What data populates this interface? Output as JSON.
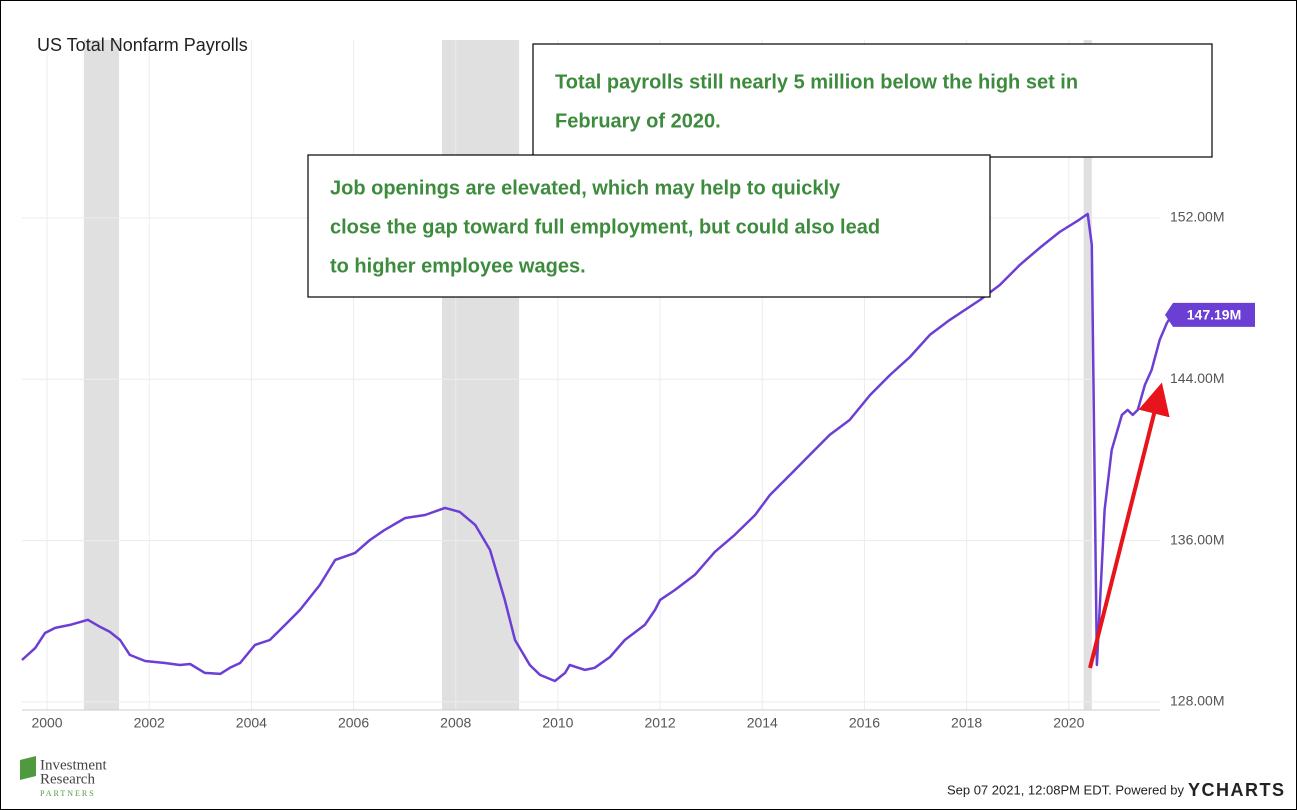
{
  "chart_data": {
    "type": "line",
    "title": "US Total Nonfarm Payrolls",
    "annotations": [
      "Total payrolls still nearly 5 million below the high set in",
      "February of 2020.",
      "Job openings are elevated, which may help to quickly",
      "close the gap toward full employment, but could also lead",
      "to higher employee wages."
    ],
    "footer": "Sep 07 2021, 12:08PM EDT. Powered by",
    "brand": "YCHARTS",
    "logo": [
      "Investment",
      "Research",
      "PARTNERS"
    ],
    "x": [
      1999.51,
      1999.77,
      1999.96,
      2000.16,
      2000.45,
      2000.8,
      2001.04,
      2001.23,
      2001.43,
      2001.62,
      2001.92,
      2002.31,
      2002.6,
      2002.8,
      2003.09,
      2003.39,
      2003.58,
      2003.78,
      2004.07,
      2004.36,
      2004.66,
      2004.95,
      2005.34,
      2005.64,
      2006.03,
      2006.32,
      2006.61,
      2007.01,
      2007.4,
      2007.79,
      2008.08,
      2008.38,
      2008.67,
      2008.96,
      2009.16,
      2009.45,
      2009.65,
      2009.94,
      2010.14,
      2010.23,
      2010.53,
      2010.72,
      2011.02,
      2011.31,
      2011.7,
      2011.9,
      2012.0,
      2012.29,
      2012.68,
      2013.07,
      2013.46,
      2013.86,
      2014.15,
      2014.54,
      2014.93,
      2015.32,
      2015.71,
      2016.11,
      2016.5,
      2016.89,
      2017.28,
      2017.67,
      2018.26,
      2018.65,
      2019.04,
      2019.43,
      2019.82,
      2020.2,
      2020.37,
      2020.45,
      2020.55,
      2020.7,
      2020.84,
      2021.04,
      2021.15,
      2021.25,
      2021.35,
      2021.49,
      2021.62,
      2021.78,
      2021.92,
      2022.02
    ],
    "series": [
      {
        "name": "US Total Nonfarm Payrolls",
        "color": "#6b3fd4",
        "values": [
          130.08,
          130.68,
          131.42,
          131.67,
          131.82,
          132.07,
          131.72,
          131.47,
          131.07,
          130.33,
          130.03,
          129.93,
          129.83,
          129.88,
          129.44,
          129.39,
          129.69,
          129.93,
          130.83,
          131.07,
          131.82,
          132.56,
          133.8,
          135.04,
          135.39,
          136.03,
          136.53,
          137.12,
          137.27,
          137.62,
          137.42,
          136.78,
          135.54,
          133.06,
          131.07,
          129.83,
          129.34,
          129.04,
          129.44,
          129.83,
          129.59,
          129.69,
          130.23,
          131.07,
          131.82,
          132.56,
          133.06,
          133.55,
          134.3,
          135.44,
          136.28,
          137.27,
          138.26,
          139.25,
          140.25,
          141.24,
          141.98,
          143.22,
          144.21,
          145.1,
          146.2,
          146.94,
          147.93,
          148.67,
          149.67,
          150.51,
          151.3,
          151.9,
          152.2,
          150.66,
          129.83,
          137.52,
          140.49,
          142.23,
          142.48,
          142.23,
          142.48,
          143.72,
          144.46,
          145.95,
          146.79,
          147.19
        ]
      }
    ],
    "last_value_label": "147.19M",
    "shaded_ranges": [
      [
        2000.72,
        2001.41
      ],
      [
        2007.73,
        2009.24
      ],
      [
        2020.29,
        2020.45
      ]
    ],
    "xlim": [
      1999.51,
      2022.02
    ],
    "xticks": [
      2000,
      2002,
      2004,
      2006,
      2008,
      2010,
      2012,
      2014,
      2016,
      2018,
      2020
    ],
    "ylim": [
      127.6,
      160.82
    ],
    "yticks": [
      {
        "value": 128,
        "label": "128.00M"
      },
      {
        "value": 136,
        "label": "136.00M"
      },
      {
        "value": 144,
        "label": "144.00M"
      },
      {
        "value": 152,
        "label": "152.00M"
      }
    ],
    "grid": true
  }
}
